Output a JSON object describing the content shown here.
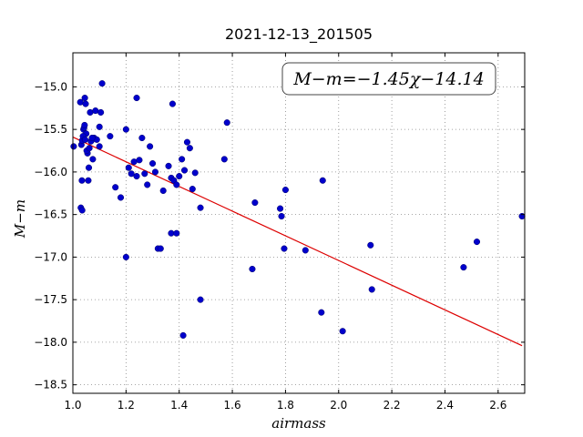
{
  "chart_data": {
    "type": "scatter",
    "title": "2021-12-13_201505",
    "xlabel": "airmass",
    "ylabel": "M−m",
    "xlim": [
      1.0,
      2.7
    ],
    "ylim": [
      -18.6,
      -14.6
    ],
    "x_ticks": [
      "1.0",
      "1.2",
      "1.4",
      "1.6",
      "1.8",
      "2.0",
      "2.2",
      "2.4",
      "2.6"
    ],
    "y_ticks": [
      "−15.0",
      "−15.5",
      "−16.0",
      "−16.5",
      "−17.0",
      "−17.5",
      "−18.0",
      "−18.5"
    ],
    "grid": true,
    "annotation": "M−m=−1.45χ−14.14",
    "colors": {
      "points": "#0000cc",
      "fit": "#dd0000",
      "grid": "#888888"
    },
    "fit": {
      "slope": -1.45,
      "intercept": -14.14,
      "x_range": [
        1.0,
        2.69
      ]
    },
    "series": [
      {
        "x": [
          1.003,
          1.028,
          1.032,
          1.04,
          1.045,
          1.048,
          1.05,
          1.055,
          1.06,
          1.065,
          1.07,
          1.075,
          1.08,
          1.085,
          1.09,
          1.1,
          1.105,
          1.11,
          1.035,
          1.038,
          1.042,
          1.044,
          1.046,
          1.052,
          1.058,
          1.062,
          1.068,
          1.072,
          1.1,
          1.14,
          1.16,
          1.18,
          1.2,
          1.21,
          1.22,
          1.23,
          1.24,
          1.25,
          1.26,
          1.27,
          1.28,
          1.29,
          1.3,
          1.31,
          1.32,
          1.34,
          1.36,
          1.37,
          1.38,
          1.39,
          1.4,
          1.41,
          1.42,
          1.43,
          1.44,
          1.45,
          1.46,
          1.48,
          1.03,
          1.035,
          1.034,
          1.2,
          1.24,
          1.33,
          1.375,
          1.37,
          1.39,
          1.415,
          1.48,
          1.57,
          1.58,
          1.675,
          1.685,
          1.78,
          1.785,
          1.795,
          1.8,
          1.875,
          1.935,
          1.94,
          2.015,
          2.12,
          2.125,
          2.47,
          2.52,
          2.69
        ],
        "y": [
          -15.7,
          -15.18,
          -15.68,
          -15.5,
          -15.13,
          -15.2,
          -15.55,
          -15.78,
          -15.95,
          -15.3,
          -15.63,
          -15.85,
          -15.6,
          -15.28,
          -15.62,
          -15.7,
          -15.3,
          -14.96,
          -15.63,
          -15.58,
          -15.48,
          -15.45,
          -15.62,
          -15.75,
          -16.1,
          -15.72,
          -15.64,
          -15.6,
          -15.47,
          -15.58,
          -16.18,
          -16.3,
          -15.5,
          -15.95,
          -16.02,
          -15.88,
          -16.05,
          -15.86,
          -15.6,
          -16.02,
          -16.15,
          -15.7,
          -15.9,
          -16.0,
          -16.9,
          -16.22,
          -15.93,
          -16.07,
          -16.1,
          -16.15,
          -16.05,
          -15.85,
          -15.98,
          -15.65,
          -15.72,
          -16.2,
          -16.01,
          -16.42,
          -16.42,
          -16.45,
          -16.1,
          -17.0,
          -15.13,
          -16.9,
          -15.2,
          -16.72,
          -16.72,
          -17.92,
          -17.5,
          -15.85,
          -15.42,
          -17.14,
          -16.36,
          -16.43,
          -16.52,
          -16.9,
          -16.21,
          -16.92,
          -17.65,
          -16.1,
          -17.87,
          -16.86,
          -17.38,
          -17.12,
          -16.82,
          -16.52
        ]
      }
    ]
  }
}
